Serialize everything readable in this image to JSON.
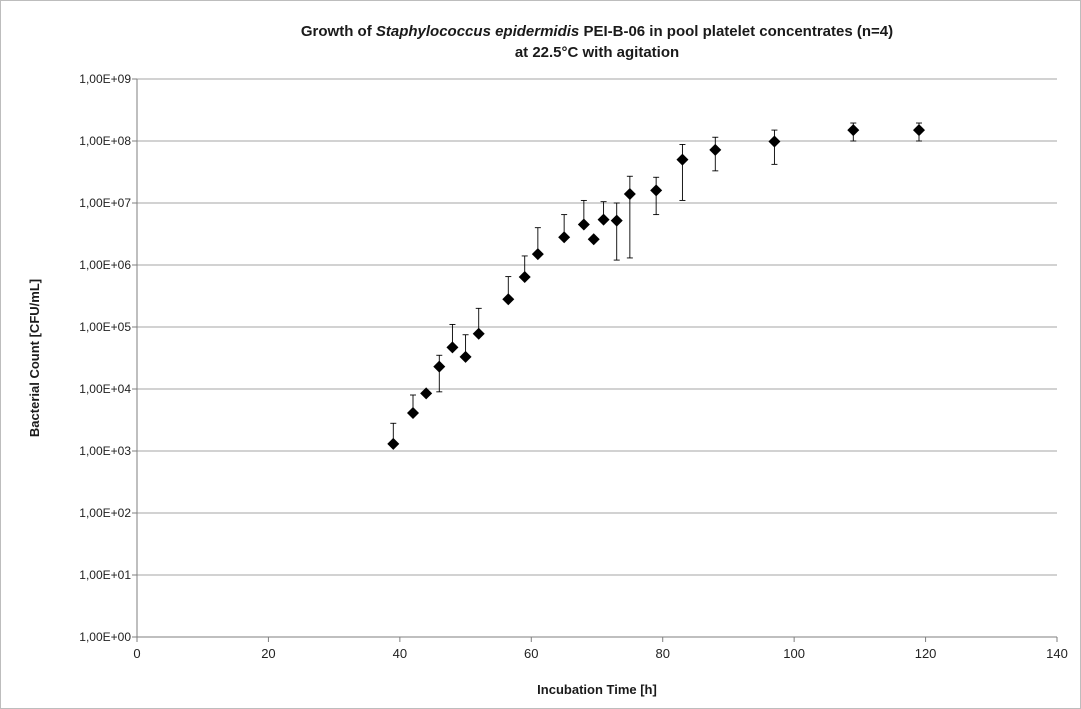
{
  "chart_data": {
    "type": "scatter",
    "title_parts": {
      "prefix": "Growth of ",
      "organism": "Staphylococcus epidermidis",
      "suffix": " PEI-B-06 in pool platelet concentrates  (n=4)",
      "line2": "at 22.5°C with agitation"
    },
    "xlabel": "Incubation Time [h]",
    "ylabel": "Bacterial Count  [CFU/mL]",
    "xlim": [
      0,
      140
    ],
    "x_ticks": [
      0,
      20,
      40,
      60,
      80,
      100,
      120,
      140
    ],
    "x_tick_labels": [
      "0",
      "20",
      "40",
      "60",
      "80",
      "100",
      "120",
      "140"
    ],
    "y_scale": "log",
    "ylim": [
      1,
      1000000000
    ],
    "y_ticks": [
      1,
      10,
      100,
      1000,
      10000,
      100000,
      1000000,
      10000000,
      100000000,
      1000000000
    ],
    "y_tick_labels": [
      "1,00E+00",
      "1,00E+01",
      "1,00E+02",
      "1,00E+03",
      "1,00E+04",
      "1,00E+05",
      "1,00E+06",
      "1,00E+07",
      "1,00E+08",
      "1,00E+09"
    ],
    "grid": "horizontal",
    "legend": "none",
    "marker": "diamond",
    "marker_color": "#000000",
    "points": [
      {
        "x": 39,
        "y": 1300,
        "err_low": 1300,
        "err_high": 2800
      },
      {
        "x": 42,
        "y": 4100,
        "err_low": 4100,
        "err_high": 8000
      },
      {
        "x": 44,
        "y": 8500,
        "err_low": 8500,
        "err_high": 8500
      },
      {
        "x": 46,
        "y": 23000,
        "err_low": 9000,
        "err_high": 35000
      },
      {
        "x": 48,
        "y": 47000,
        "err_low": 47000,
        "err_high": 110000
      },
      {
        "x": 50,
        "y": 33000,
        "err_low": 33000,
        "err_high": 75000
      },
      {
        "x": 52,
        "y": 78000,
        "err_low": 78000,
        "err_high": 200000
      },
      {
        "x": 56.5,
        "y": 280000,
        "err_low": 280000,
        "err_high": 650000
      },
      {
        "x": 59,
        "y": 640000,
        "err_low": 640000,
        "err_high": 1400000
      },
      {
        "x": 61,
        "y": 1500000,
        "err_low": 1500000,
        "err_high": 4000000
      },
      {
        "x": 65,
        "y": 2800000,
        "err_low": 2800000,
        "err_high": 6500000
      },
      {
        "x": 68,
        "y": 4500000,
        "err_low": 4500000,
        "err_high": 11000000
      },
      {
        "x": 69.5,
        "y": 2600000,
        "err_low": 2600000,
        "err_high": 2600000
      },
      {
        "x": 71,
        "y": 5400000,
        "err_low": 5400000,
        "err_high": 10500000
      },
      {
        "x": 73,
        "y": 5200000,
        "err_low": 1200000,
        "err_high": 10000000
      },
      {
        "x": 75,
        "y": 14000000,
        "err_low": 1300000,
        "err_high": 27000000
      },
      {
        "x": 79,
        "y": 16000000,
        "err_low": 6500000,
        "err_high": 26000000
      },
      {
        "x": 83,
        "y": 50000000,
        "err_low": 11000000,
        "err_high": 88000000
      },
      {
        "x": 88,
        "y": 72000000,
        "err_low": 33000000,
        "err_high": 115000000
      },
      {
        "x": 97,
        "y": 98000000,
        "err_low": 42000000,
        "err_high": 150000000
      },
      {
        "x": 109,
        "y": 150000000,
        "err_low": 100000000,
        "err_high": 195000000
      },
      {
        "x": 119,
        "y": 150000000,
        "err_low": 100000000,
        "err_high": 195000000
      }
    ]
  }
}
